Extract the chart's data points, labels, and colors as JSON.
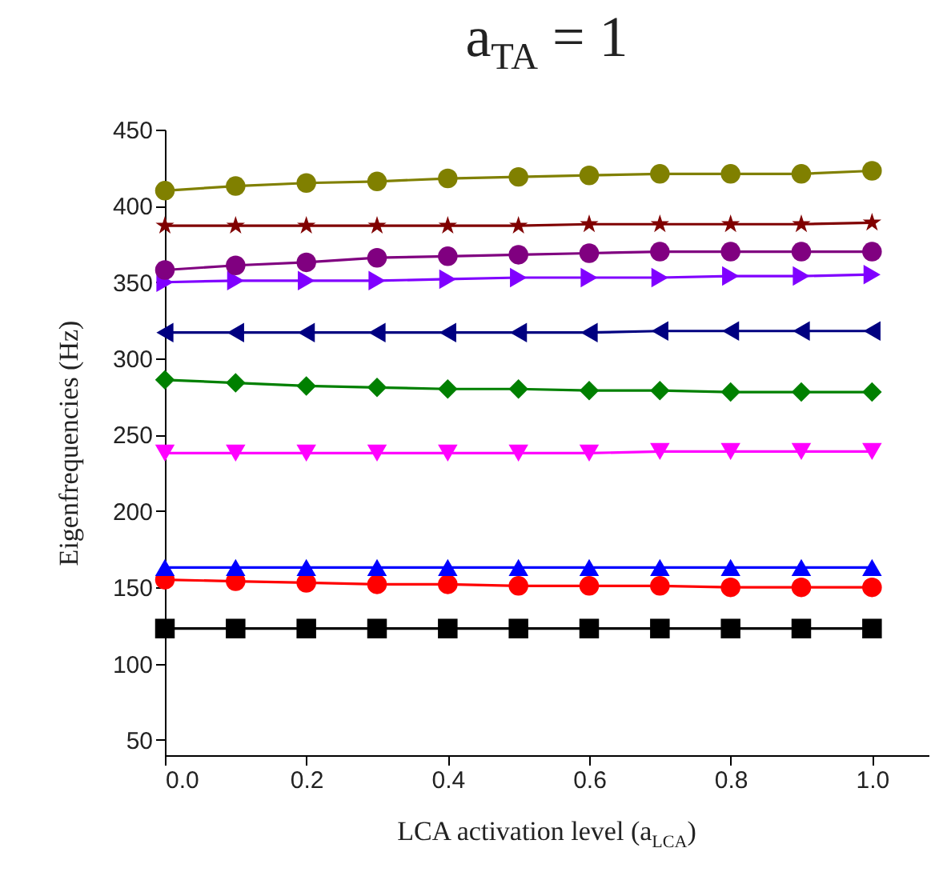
{
  "chart_data": {
    "type": "line",
    "title": "a$_{TA}$ = 1",
    "xlabel": "LCA activation level (a$_{LCA}$)",
    "ylabel": "Eigenfrequencies (Hz)",
    "x": [
      0,
      0.1,
      0.2,
      0.3,
      0.4,
      0.5,
      0.6,
      0.7,
      0.8,
      0.9,
      1.0
    ],
    "xlim": [
      0,
      1.08
    ],
    "xticks": [
      {
        "value": 0,
        "label": "0.0"
      },
      0.2,
      0.4,
      0.6,
      0.8,
      {
        "value": 1,
        "label": "1.0"
      }
    ],
    "ylim": [
      40,
      450
    ],
    "yticks": [
      50,
      100,
      150,
      200,
      250,
      300,
      350,
      400,
      450
    ],
    "grid": false,
    "line_style": "solid",
    "series": [
      {
        "color": "#000000",
        "marker": "square",
        "values": [
          123,
          123,
          123,
          123,
          123,
          123,
          123,
          123,
          123,
          123,
          123
        ]
      },
      {
        "color": "#ff0000",
        "marker": "circle",
        "values": [
          155,
          154,
          153,
          152,
          152,
          151,
          151,
          151,
          150,
          150,
          150
        ]
      },
      {
        "color": "#0000ff",
        "marker": "triangle",
        "values": [
          163,
          163,
          163,
          163,
          163,
          163,
          163,
          163,
          163,
          163,
          163
        ]
      },
      {
        "color": "#ff00ff",
        "marker": "triangle-down",
        "values": [
          238,
          238,
          238,
          238,
          238,
          238,
          238,
          239,
          239,
          239,
          239
        ]
      },
      {
        "color": "#008000",
        "marker": "diamond",
        "values": [
          286,
          284,
          282,
          281,
          280,
          280,
          279,
          279,
          278,
          278,
          278
        ]
      },
      {
        "color": "#000080",
        "marker": "triangle-left",
        "values": [
          317,
          317,
          317,
          317,
          317,
          317,
          317,
          318,
          318,
          318,
          318
        ]
      },
      {
        "color": "#8000ff",
        "marker": "triangle-right",
        "values": [
          350,
          351,
          351,
          351,
          352,
          353,
          353,
          353,
          354,
          354,
          355
        ]
      },
      {
        "color": "#800080",
        "marker": "circle",
        "values": [
          358,
          361,
          363,
          366,
          367,
          368,
          369,
          370,
          370,
          370,
          370
        ]
      },
      {
        "color": "#800000",
        "marker": "star",
        "values": [
          387,
          387,
          387,
          387,
          387,
          387,
          388,
          388,
          388,
          388,
          389
        ]
      },
      {
        "color": "#808000",
        "marker": "circle",
        "values": [
          410,
          413,
          415,
          416,
          418,
          419,
          420,
          421,
          421,
          421,
          423
        ]
      }
    ]
  }
}
